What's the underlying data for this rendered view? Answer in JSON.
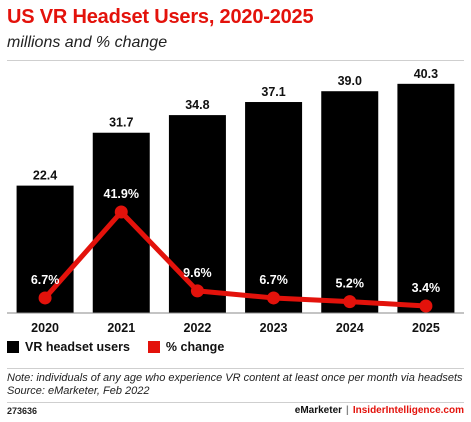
{
  "header": {
    "title": "US VR Headset Users, 2020-2025",
    "subtitle": "millions and % change"
  },
  "legend": {
    "bar_label": "VR headset users",
    "line_label": "% change"
  },
  "notes": {
    "note": "Note: individuals of any age who experience VR content at least once per month via headsets",
    "source": "Source: eMarketer, Feb 2022"
  },
  "footer": {
    "id": "273636",
    "brand1": "eMarketer",
    "separator": "|",
    "brand2": "InsiderIntelligence.com"
  },
  "colors": {
    "accent": "#e3120b",
    "bar": "#000000"
  },
  "chart_data": {
    "type": "bar",
    "categories": [
      "2020",
      "2021",
      "2022",
      "2023",
      "2024",
      "2025"
    ],
    "series": [
      {
        "name": "VR headset users",
        "type": "bar",
        "values": [
          22.4,
          31.7,
          34.8,
          37.1,
          39.0,
          40.3
        ],
        "labels": [
          "22.4",
          "31.7",
          "34.8",
          "37.1",
          "39.0",
          "40.3"
        ]
      },
      {
        "name": "% change",
        "type": "line",
        "values": [
          6.7,
          41.9,
          9.6,
          6.7,
          5.2,
          3.4
        ],
        "labels": [
          "6.7%",
          "41.9%",
          "9.6%",
          "6.7%",
          "5.2%",
          "3.4%"
        ]
      }
    ],
    "title": "US VR Headset Users, 2020-2025",
    "subtitle": "millions and % change",
    "legend_position": "bottom-left"
  }
}
